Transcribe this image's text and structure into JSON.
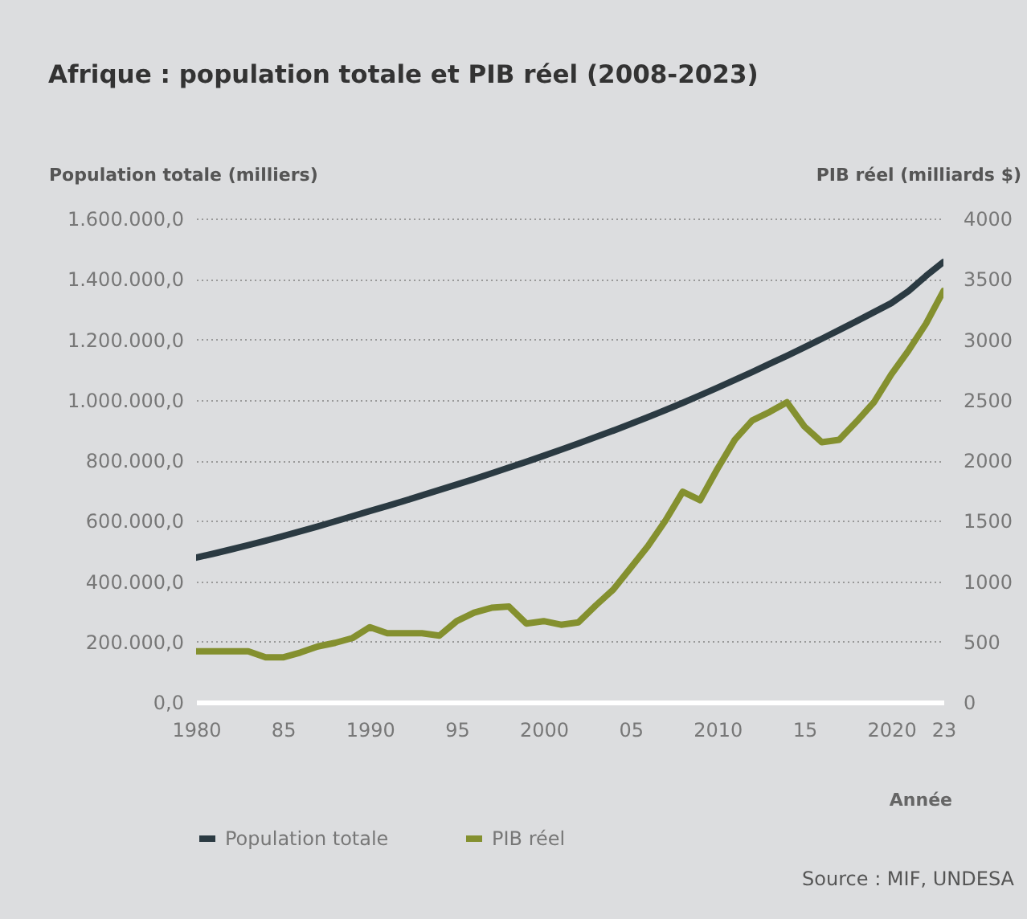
{
  "chart_data": {
    "type": "line",
    "title": "Afrique : population totale et PIB réel (2008-2023)",
    "xlabel": "Année",
    "ylabel": "Population totale (milliers)",
    "y2label": "PIB réel (milliards $)",
    "annotations": [
      "Source : MIF, UNDESA"
    ],
    "x": [
      1980,
      1981,
      1982,
      1983,
      1984,
      1985,
      1986,
      1987,
      1988,
      1989,
      1990,
      1991,
      1992,
      1993,
      1994,
      1995,
      1996,
      1997,
      1998,
      1999,
      2000,
      2001,
      2002,
      2003,
      2004,
      2005,
      2006,
      2007,
      2008,
      2009,
      2010,
      2011,
      2012,
      2013,
      2014,
      2015,
      2016,
      2017,
      2018,
      2019,
      2020,
      2021,
      2022,
      2023
    ],
    "series": [
      {
        "name": "Population totale",
        "color": "#2b3a42",
        "values": [
          478000,
          491000,
          505000,
          519000,
          534000,
          549000,
          565000,
          581000,
          598000,
          615000,
          632000,
          649000,
          666000,
          684000,
          702000,
          720000,
          738000,
          757000,
          776000,
          795000,
          815000,
          835000,
          856000,
          877000,
          898000,
          920000,
          943000,
          966000,
          990000,
          1015000,
          1040000,
          1066000,
          1092000,
          1119000,
          1146000,
          1174000,
          1202000,
          1231000,
          1260000,
          1290000,
          1320000,
          1360000,
          1410000,
          1456000
        ]
      },
      {
        "name": "PIB réel",
        "color": "#84902f",
        "axis": "y2",
        "values": [
          420,
          420,
          420,
          420,
          370,
          370,
          410,
          460,
          490,
          530,
          620,
          570,
          570,
          570,
          550,
          670,
          740,
          780,
          790,
          650,
          670,
          640,
          660,
          800,
          930,
          1110,
          1290,
          1500,
          1740,
          1670,
          1930,
          2170,
          2330,
          2400,
          2480,
          2280,
          2150,
          2170,
          2320,
          2480,
          2710,
          2910,
          3130,
          3400
        ]
      }
    ],
    "xlim": [
      1980,
      2023
    ],
    "xticks": [
      1980,
      {
        "value": 1985,
        "label": "85"
      },
      1990,
      {
        "value": 1995,
        "label": "95"
      },
      2000,
      {
        "value": 2005,
        "label": "05"
      },
      2010,
      {
        "value": 2015,
        "label": "15"
      },
      2020,
      {
        "value": 2023,
        "label": "23"
      }
    ],
    "ylim": [
      0,
      1600000
    ],
    "yticks": [
      {
        "value": 0,
        "label": "0,0"
      },
      {
        "value": 200000,
        "label": "200.000,0"
      },
      {
        "value": 400000,
        "label": "400.000,0"
      },
      {
        "value": 600000,
        "label": "600.000,0"
      },
      {
        "value": 800000,
        "label": "800.000,0"
      },
      {
        "value": 1000000,
        "label": "1.000.000,0"
      },
      {
        "value": 1200000,
        "label": "1.200.000,0"
      },
      {
        "value": 1400000,
        "label": "1.400.000,0"
      },
      {
        "value": 1600000,
        "label": "1.600.000,0"
      }
    ],
    "y2lim": [
      0,
      4000
    ],
    "y2ticks": [
      0,
      500,
      1000,
      1500,
      2000,
      2500,
      3000,
      3500,
      4000
    ],
    "grid": "y",
    "legend": "bottom left",
    "marker": "none",
    "line_style": "solid"
  }
}
